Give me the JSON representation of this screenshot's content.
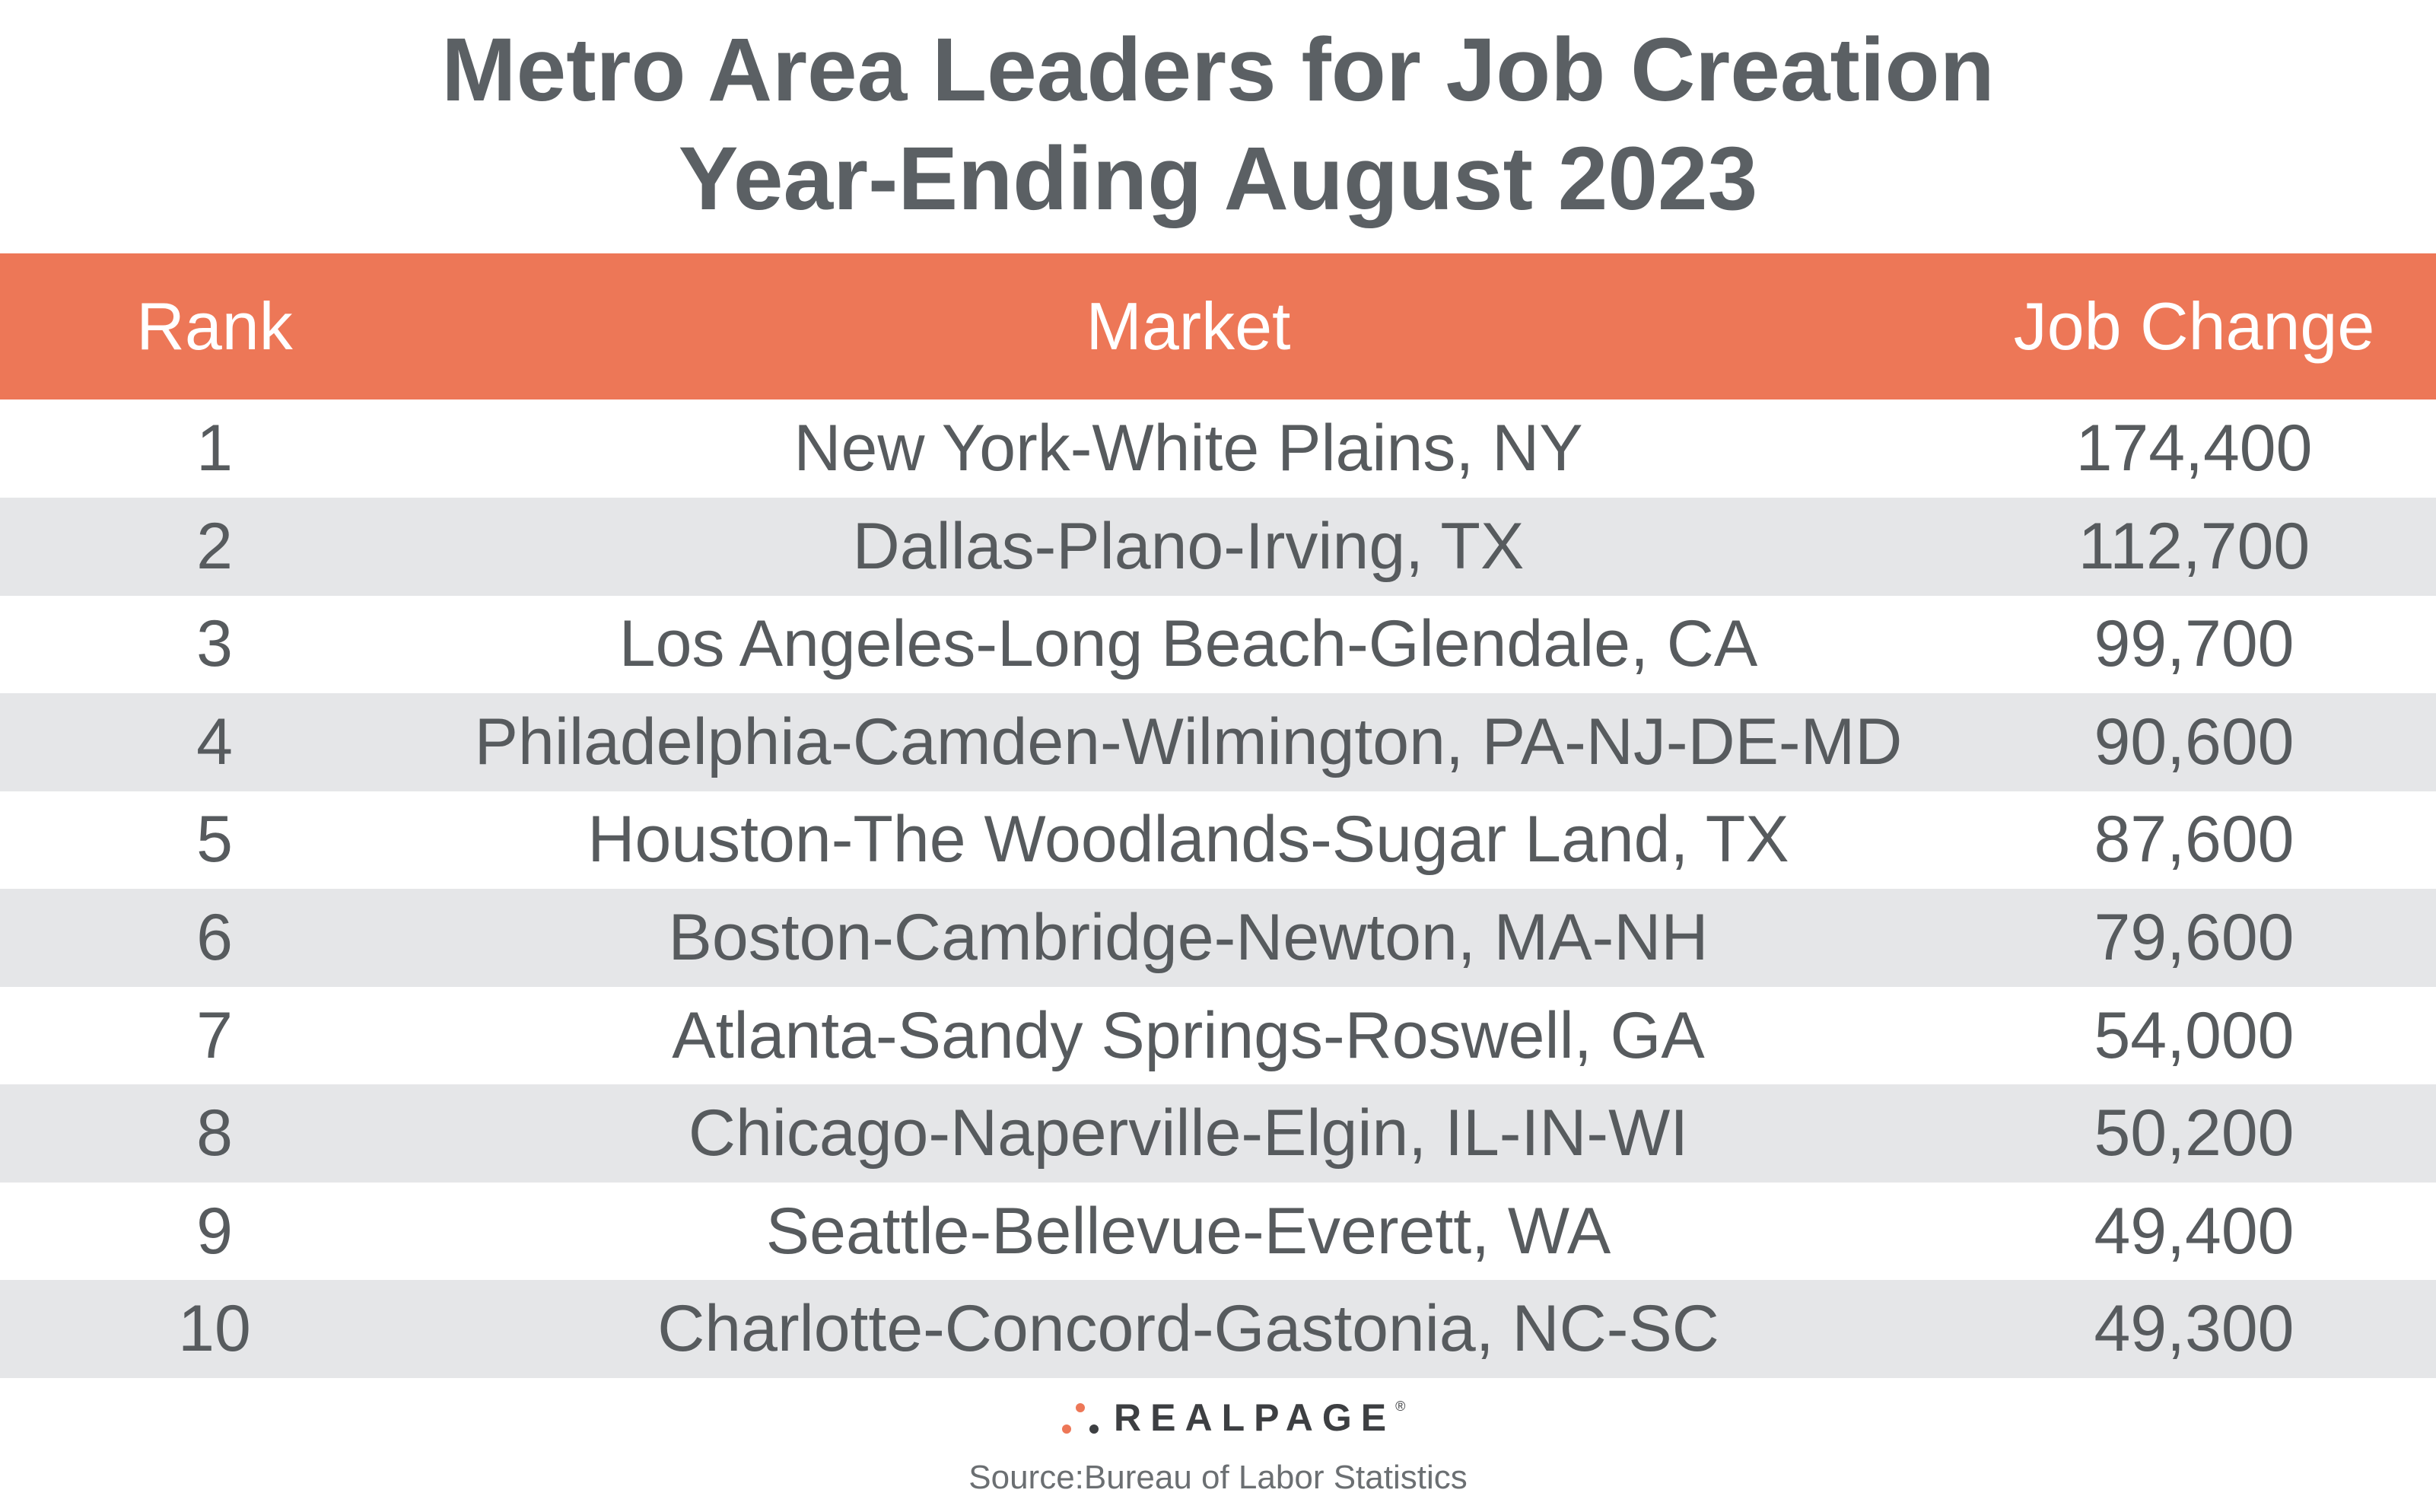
{
  "header": {
    "title_line1": "Metro Area Leaders for Job Creation",
    "title_line2": "Year-Ending August 2023"
  },
  "table": {
    "columns": [
      "Rank",
      "Market",
      "Job Change"
    ],
    "rows": [
      [
        "1",
        "New York-White Plains, NY",
        "174,400"
      ],
      [
        "2",
        "Dallas-Plano-Irving, TX",
        "112,700"
      ],
      [
        "3",
        "Los Angeles-Long Beach-Glendale, CA",
        "99,700"
      ],
      [
        "4",
        "Philadelphia-Camden-Wilmington, PA-NJ-DE-MD",
        "90,600"
      ],
      [
        "5",
        "Houston-The Woodlands-Sugar Land, TX",
        "87,600"
      ],
      [
        "6",
        "Boston-Cambridge-Newton, MA-NH",
        "79,600"
      ],
      [
        "7",
        "Atlanta-Sandy Springs-Roswell, GA",
        "54,000"
      ],
      [
        "8",
        "Chicago-Naperville-Elgin, IL-IN-WI",
        "50,200"
      ],
      [
        "9",
        "Seattle-Bellevue-Everett, WA",
        "49,400"
      ],
      [
        "10",
        "Charlotte-Concord-Gastonia, NC-SC",
        "49,300"
      ]
    ]
  },
  "footer": {
    "logo": "REALPAGE",
    "logo_mark": "®",
    "source": "Source:Bureau of Labor Statistics"
  }
}
